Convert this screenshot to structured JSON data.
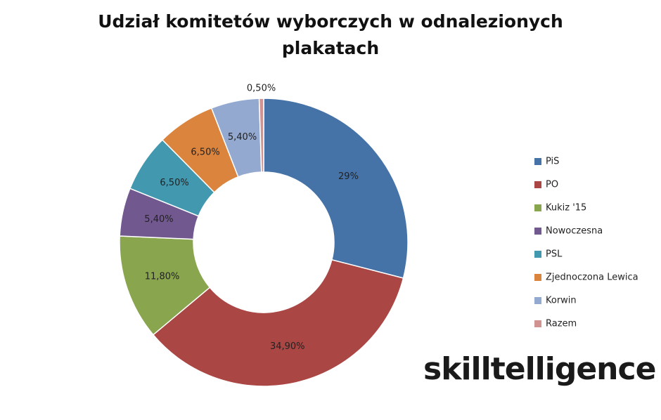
{
  "chart_data": {
    "type": "donut",
    "title": "Udział komitetów wyborczych w odnalezionych plakatach",
    "categories": [
      "PiS",
      "PO",
      "Kukiz '15",
      "Nowoczesna",
      "PSL",
      "Zjednoczona Lewica",
      "Korwin",
      "Razem"
    ],
    "values": [
      29,
      34.9,
      11.8,
      5.4,
      6.5,
      6.5,
      5.4,
      0.5
    ],
    "value_labels": [
      "29%",
      "34,90%",
      "11,80%",
      "5,40%",
      "6,50%",
      "6,50%",
      "5,40%",
      "0,50%"
    ],
    "colors": [
      "#4572a7",
      "#aa4643",
      "#89a54e",
      "#71588f",
      "#4198af",
      "#db843d",
      "#93a9cf",
      "#d19392"
    ],
    "legend": "right"
  },
  "logo": "skilltelligence"
}
